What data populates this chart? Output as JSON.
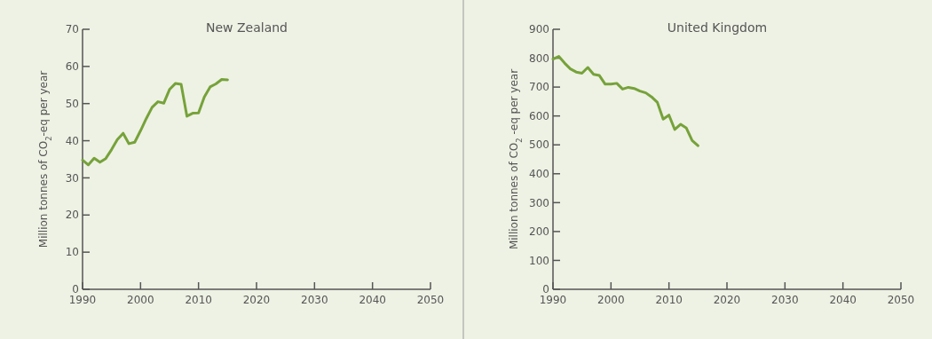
{
  "chart_data": [
    {
      "type": "line",
      "title": "New Zealand",
      "ylabel": "Million tonnes of CO$_{2}$-eq per year",
      "x": [
        1990,
        1991,
        1992,
        1993,
        1994,
        1995,
        1996,
        1997,
        1998,
        1999,
        2000,
        2001,
        2002,
        2003,
        2004,
        2005,
        2006,
        2007,
        2008,
        2009,
        2010,
        2011,
        2012,
        2013,
        2014,
        2015
      ],
      "series": [
        {
          "color": "#76a23a",
          "values": [
            34.8,
            33.5,
            35.3,
            34.2,
            35.2,
            37.6,
            40.3,
            42.0,
            39.2,
            39.6,
            42.7,
            46.0,
            49.0,
            50.5,
            50.1,
            53.8,
            55.4,
            55.2,
            46.6,
            47.4,
            47.5,
            51.8,
            54.5,
            55.3,
            56.5,
            56.4
          ]
        }
      ],
      "xlim": [
        1990,
        2050
      ],
      "xticks": [
        1990,
        2000,
        2010,
        2020,
        2030,
        2040,
        2050
      ],
      "ylim": [
        0,
        70
      ],
      "yticks": [
        0,
        10,
        20,
        30,
        40,
        50,
        60,
        70
      ]
    },
    {
      "type": "line",
      "title": "United Kingdom",
      "ylabel": "Million tonnes of CO$_{2}$ -eq per year",
      "x": [
        1990,
        1991,
        1992,
        1993,
        1994,
        1995,
        1996,
        1997,
        1998,
        1999,
        2000,
        2001,
        2002,
        2003,
        2004,
        2005,
        2006,
        2007,
        2008,
        2009,
        2010,
        2011,
        2012,
        2013,
        2014,
        2015
      ],
      "series": [
        {
          "color": "#76a23a",
          "values": [
            797,
            806,
            783,
            763,
            752,
            748,
            768,
            744,
            740,
            710,
            710,
            713,
            693,
            699,
            695,
            686,
            680,
            666,
            647,
            589,
            603,
            553,
            571,
            558,
            515,
            497
          ]
        }
      ],
      "xlim": [
        1990,
        2050
      ],
      "xticks": [
        1990,
        2000,
        2010,
        2020,
        2030,
        2040,
        2050
      ],
      "ylim": [
        0,
        900
      ],
      "yticks": [
        0,
        100,
        200,
        300,
        400,
        500,
        600,
        700,
        800,
        900
      ]
    }
  ]
}
